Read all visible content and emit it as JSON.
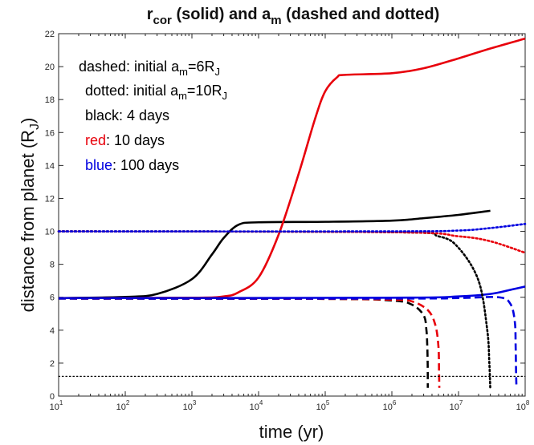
{
  "chart_data": {
    "type": "line",
    "title_parts": {
      "r": "r",
      "r_sub": "cor",
      "mid": " (solid) and a",
      "a_sub": "m",
      "end": " (dashed and dotted)"
    },
    "xlabel": "time (yr)",
    "ylabel": "distance from planet (R",
    "ylabel_sub": "J",
    "ylabel_end": ")",
    "xscale": "log",
    "xlim": [
      10,
      100000000
    ],
    "ylim": [
      0,
      22
    ],
    "x_tick_base": "10",
    "x_tick_exponents": [
      "1",
      "2",
      "3",
      "4",
      "5",
      "6",
      "7",
      "8"
    ],
    "y_ticks": [
      "0",
      "2",
      "4",
      "6",
      "8",
      "10",
      "12",
      "14",
      "16",
      "18",
      "20",
      "22"
    ],
    "grid": false,
    "legend_text": {
      "line1_pre": "dashed: initial a",
      "line1_sub": "m",
      "line1_post": "=6R",
      "line1_sub2": "J",
      "line2_pre": "dotted: initial a",
      "line2_sub": "m",
      "line2_post": "=10R",
      "line2_sub2": "J",
      "line3": "black: 4 days",
      "line4_color_word": "red",
      "line4_rest": ": 10 days",
      "line5_color_word": "blue",
      "line5_rest": ": 100 days"
    },
    "colors": {
      "black": "#000000",
      "red": "#e8000b",
      "blue": "#0000e0",
      "axis": "#262626"
    },
    "series": [
      {
        "color": "black",
        "style": "solid",
        "points": [
          [
            10,
            5.95
          ],
          [
            100,
            6.02
          ],
          [
            300,
            6.2
          ],
          [
            1000,
            7.1
          ],
          [
            2000,
            8.6
          ],
          [
            3000,
            9.6
          ],
          [
            5000,
            10.4
          ],
          [
            10000,
            10.55
          ],
          [
            100000,
            10.58
          ],
          [
            1000000,
            10.65
          ],
          [
            3000000,
            10.8
          ],
          [
            10000000,
            11.0
          ],
          [
            30000000,
            11.25
          ]
        ]
      },
      {
        "color": "red",
        "style": "solid",
        "points": [
          [
            10,
            5.95
          ],
          [
            1000,
            5.97
          ],
          [
            3000,
            6.05
          ],
          [
            5000,
            6.3
          ],
          [
            10000,
            7.2
          ],
          [
            20000,
            9.8
          ],
          [
            40000,
            13.5
          ],
          [
            70000,
            16.8
          ],
          [
            100000,
            18.5
          ],
          [
            150000,
            19.35
          ],
          [
            200000,
            19.5
          ],
          [
            1000000,
            19.6
          ],
          [
            3000000,
            19.9
          ],
          [
            10000000,
            20.5
          ],
          [
            30000000,
            21.1
          ],
          [
            100000000,
            21.7
          ]
        ]
      },
      {
        "color": "blue",
        "style": "solid",
        "points": [
          [
            10,
            5.95
          ],
          [
            1000000,
            5.97
          ],
          [
            10000000,
            6.05
          ],
          [
            30000000,
            6.2
          ],
          [
            60000000,
            6.45
          ],
          [
            100000000,
            6.65
          ]
        ]
      },
      {
        "color": "black",
        "style": "dashed",
        "points": [
          [
            10,
            5.92
          ],
          [
            100000,
            5.9
          ],
          [
            1000000,
            5.8
          ],
          [
            2000000,
            5.55
          ],
          [
            3000000,
            4.9
          ],
          [
            3300000,
            4.0
          ],
          [
            3400000,
            3.0
          ],
          [
            3450000,
            1.8
          ],
          [
            3460000,
            0.5
          ]
        ]
      },
      {
        "color": "red",
        "style": "dashed",
        "points": [
          [
            10,
            5.92
          ],
          [
            100000,
            5.9
          ],
          [
            1000000,
            5.85
          ],
          [
            2000000,
            5.75
          ],
          [
            3500000,
            5.2
          ],
          [
            4500000,
            4.3
          ],
          [
            5000000,
            3.0
          ],
          [
            5100000,
            1.5
          ],
          [
            5150000,
            0.5
          ]
        ]
      },
      {
        "color": "blue",
        "style": "dashed",
        "points": [
          [
            10,
            5.92
          ],
          [
            1000000,
            5.92
          ],
          [
            10000000,
            5.95
          ],
          [
            40000000,
            6.0
          ],
          [
            60000000,
            5.6
          ],
          [
            70000000,
            4.5
          ],
          [
            72000000,
            3.0
          ],
          [
            73000000,
            1.5
          ],
          [
            74000000,
            0.5
          ]
        ]
      },
      {
        "color": "black",
        "style": "dotted",
        "points": [
          [
            10,
            10.0
          ],
          [
            1000000,
            9.95
          ],
          [
            5000000,
            9.7
          ],
          [
            10000000,
            9.0
          ],
          [
            20000000,
            7.0
          ],
          [
            27000000,
            4.0
          ],
          [
            29000000,
            2.0
          ],
          [
            30000000,
            0.4
          ]
        ]
      },
      {
        "color": "red",
        "style": "dotted",
        "points": [
          [
            10,
            10.0
          ],
          [
            1000000,
            9.95
          ],
          [
            10000000,
            9.7
          ],
          [
            30000000,
            9.4
          ],
          [
            100000000,
            8.7
          ]
        ]
      },
      {
        "color": "blue",
        "style": "dotted",
        "points": [
          [
            10,
            10.0
          ],
          [
            1000000,
            10.0
          ],
          [
            10000000,
            10.05
          ],
          [
            30000000,
            10.2
          ],
          [
            100000000,
            10.45
          ]
        ]
      },
      {
        "color": "black",
        "style": "dotted",
        "points": [
          [
            10,
            1.2
          ],
          [
            100000000,
            1.2
          ]
        ]
      }
    ]
  }
}
